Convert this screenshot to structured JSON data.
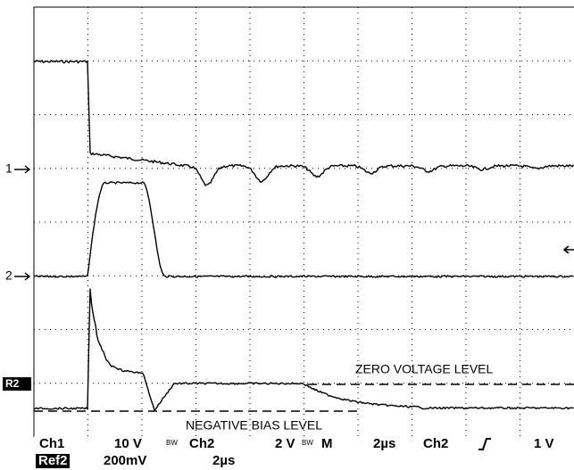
{
  "channel_markers": {
    "ch1": "1",
    "ch2": "2",
    "ref2": "R2"
  },
  "annotations": {
    "zero_level": "ZERO VOLTAGE LEVEL",
    "negative_level": "NEGATIVE BIAS LEVEL"
  },
  "status": {
    "row1": {
      "ch1": "Ch1",
      "ch1_scale": "10 V",
      "ch1_bw": "BW",
      "ch2": "Ch2",
      "ch2_scale": "2 V",
      "ch2_bw": "BW",
      "mode": "M",
      "time": "2µs",
      "trig_source": "Ch2",
      "trig_level": "1 V"
    },
    "row2": {
      "ref": "Ref2",
      "ref_scale": "200mV",
      "ref_time": "2µs"
    }
  }
}
